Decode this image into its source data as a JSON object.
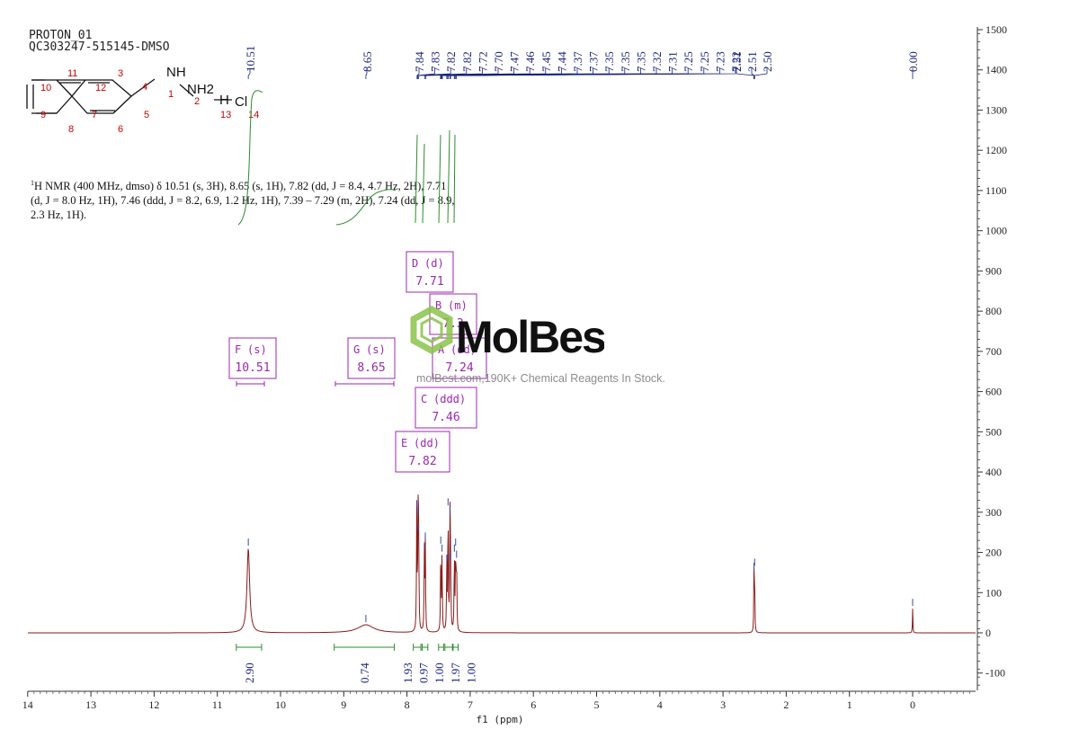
{
  "header": {
    "line1": "PROTON_01",
    "line2": "QC303247-515145-DMSO"
  },
  "description": {
    "line1": "H NMR (400 MHz, dmso) δ 10.51 (s, 3H), 8.65 (s, 1H), 7.82 (dd, J = 8.4, 4.7 Hz, 2H), 7.71",
    "sup": "1",
    "line2": "(d, J = 8.0 Hz, 1H), 7.46 (ddd, J = 8.2, 6.9, 1.2 Hz, 1H), 7.39 – 7.29 (m, 2H), 7.24 (dd, J = 8.9,",
    "line3": "2.3 Hz, 1H)."
  },
  "watermark": {
    "brand": "MolBest",
    "tagline": "molBest.com,190K+ Chemical Reagents In Stock."
  },
  "structure": {
    "atom_labels": [
      "NH",
      "NH2",
      "H",
      "Cl"
    ],
    "numbers": [
      "1",
      "2",
      "3",
      "4",
      "5",
      "6",
      "7",
      "8",
      "9",
      "10",
      "11",
      "12",
      "13",
      "14"
    ]
  },
  "colors": {
    "spectrum": "#8b1a1a",
    "peak_labels": "#1a237e",
    "integral": "#2e8b2e",
    "multiplet_box": "#9c27b0",
    "atom_numbers": "#cc0000",
    "axis": "#333333"
  },
  "chart_data": {
    "type": "line",
    "xlabel": "f1 (ppm)",
    "x_range": [
      14,
      -1
    ],
    "x_reversed": true,
    "y_range": [
      -150,
      1500
    ],
    "x_ticks": [
      14,
      13,
      12,
      11,
      10,
      9,
      8,
      7,
      6,
      5,
      4,
      3,
      2,
      1,
      0
    ],
    "y_ticks": [
      1500,
      1400,
      1300,
      1200,
      1100,
      1000,
      900,
      800,
      700,
      600,
      500,
      400,
      300,
      200,
      100,
      0,
      -100
    ],
    "peaks": [
      {
        "ppm": 10.51,
        "height": 210,
        "width": 0.05
      },
      {
        "ppm": 8.65,
        "height": 20,
        "width": 0.3
      },
      {
        "ppm": 7.845,
        "height": 305,
        "width": 0.01
      },
      {
        "ppm": 7.825,
        "height": 285,
        "width": 0.01
      },
      {
        "ppm": 7.815,
        "height": 245,
        "width": 0.01
      },
      {
        "ppm": 7.71,
        "height": 225,
        "width": 0.01
      },
      {
        "ppm": 7.725,
        "height": 200,
        "width": 0.01
      },
      {
        "ppm": 7.465,
        "height": 215,
        "width": 0.01
      },
      {
        "ppm": 7.445,
        "height": 195,
        "width": 0.01
      },
      {
        "ppm": 7.37,
        "height": 170,
        "width": 0.01
      },
      {
        "ppm": 7.35,
        "height": 310,
        "width": 0.01
      },
      {
        "ppm": 7.32,
        "height": 290,
        "width": 0.01
      },
      {
        "ppm": 7.31,
        "height": 175,
        "width": 0.01
      },
      {
        "ppm": 7.25,
        "height": 195,
        "width": 0.01
      },
      {
        "ppm": 7.23,
        "height": 210,
        "width": 0.01
      },
      {
        "ppm": 7.215,
        "height": 180,
        "width": 0.01
      },
      {
        "ppm": 2.51,
        "height": 150,
        "width": 0.008
      },
      {
        "ppm": 2.5,
        "height": 160,
        "width": 0.008
      },
      {
        "ppm": 0.0,
        "height": 60,
        "width": 0.008
      }
    ],
    "peak_labels": [
      "10.51",
      "8.65",
      "7.84",
      "7.83",
      "7.82",
      "7.82",
      "7.72",
      "7.70",
      "7.47",
      "7.46",
      "7.45",
      "7.44",
      "7.37",
      "7.37",
      "7.35",
      "7.35",
      "7.35",
      "7.32",
      "7.31",
      "7.25",
      "7.25",
      "7.23",
      "7.22",
      "2.51",
      "2.51",
      "2.50",
      "0.00"
    ],
    "integrals": [
      {
        "from": 10.7,
        "to": 10.3,
        "label": "2.90"
      },
      {
        "from": 9.15,
        "to": 8.2,
        "label": "0.74"
      },
      {
        "from": 7.9,
        "to": 7.78,
        "label": "1.93"
      },
      {
        "from": 7.76,
        "to": 7.67,
        "label": "0.97"
      },
      {
        "from": 7.5,
        "to": 7.42,
        "label": "1.00"
      },
      {
        "from": 7.4,
        "to": 7.28,
        "label": "1.97"
      },
      {
        "from": 7.27,
        "to": 7.19,
        "label": "1.00"
      }
    ],
    "multiplets": [
      {
        "id": "D",
        "mult": "(d)",
        "shift": "7.71"
      },
      {
        "id": "B",
        "mult": "(m)",
        "shift": "7.3"
      },
      {
        "id": "F",
        "mult": "(s)",
        "shift": "10.51"
      },
      {
        "id": "G",
        "mult": "(s)",
        "shift": "8.65"
      },
      {
        "id": "A",
        "mult": "(dd)",
        "shift": "7.24"
      },
      {
        "id": "C",
        "mult": "(ddd)",
        "shift": "7.46"
      },
      {
        "id": "E",
        "mult": "(dd)",
        "shift": "7.82"
      }
    ]
  }
}
